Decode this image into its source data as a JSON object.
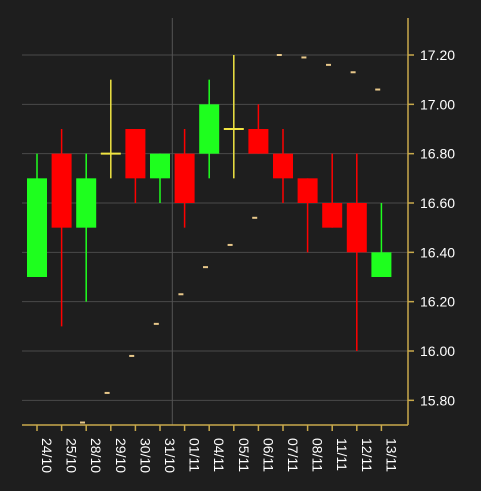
{
  "chart_data": {
    "type": "candlestick",
    "categories": [
      "24/10",
      "25/10",
      "28/10",
      "29/10",
      "30/10",
      "31/10",
      "01/11",
      "04/11",
      "05/11",
      "06/11",
      "07/11",
      "08/11",
      "11/11",
      "12/11",
      "13/11"
    ],
    "ohlc": [
      {
        "open": 16.3,
        "high": 16.8,
        "low": 16.3,
        "close": 16.7
      },
      {
        "open": 16.8,
        "high": 16.9,
        "low": 16.1,
        "close": 16.5
      },
      {
        "open": 16.5,
        "high": 16.8,
        "low": 16.2,
        "close": 16.7
      },
      {
        "open": 16.8,
        "high": 17.1,
        "low": 16.7,
        "close": 16.8
      },
      {
        "open": 16.9,
        "high": 16.9,
        "low": 16.6,
        "close": 16.7
      },
      {
        "open": 16.7,
        "high": 16.8,
        "low": 16.6,
        "close": 16.8
      },
      {
        "open": 16.8,
        "high": 16.9,
        "low": 16.5,
        "close": 16.6
      },
      {
        "open": 16.8,
        "high": 17.1,
        "low": 16.7,
        "close": 17.0
      },
      {
        "open": 16.9,
        "high": 17.2,
        "low": 16.7,
        "close": 16.9
      },
      {
        "open": 16.9,
        "high": 17.0,
        "low": 16.8,
        "close": 16.8
      },
      {
        "open": 16.8,
        "high": 16.9,
        "low": 16.6,
        "close": 16.7
      },
      {
        "open": 16.7,
        "high": 16.7,
        "low": 16.4,
        "close": 16.6
      },
      {
        "open": 16.6,
        "high": 16.8,
        "low": 16.5,
        "close": 16.5
      },
      {
        "open": 16.6,
        "high": 16.8,
        "low": 16.0,
        "close": 16.4
      },
      {
        "open": 16.3,
        "high": 16.6,
        "low": 16.3,
        "close": 16.4
      }
    ],
    "dots": [
      15.71,
      15.83,
      15.98,
      16.11,
      16.23,
      16.34,
      16.43,
      16.54,
      17.2,
      17.19,
      17.16,
      17.13,
      17.06
    ],
    "ylim": [
      15.7,
      17.35
    ],
    "yticks": [
      "15.80",
      "16.00",
      "16.20",
      "16.40",
      "16.60",
      "16.80",
      "17.00",
      "17.20"
    ],
    "title": "",
    "xlabel": "",
    "ylabel": "",
    "grid": true,
    "colors": {
      "up": "#1eff1e",
      "down": "#ff0000",
      "doji": "#f0e442",
      "dot": "#e8c88a",
      "axis": "#c8a94b",
      "grid": "#4a4a4a",
      "background": "#1e1e1e",
      "text": "#ffffff"
    }
  }
}
